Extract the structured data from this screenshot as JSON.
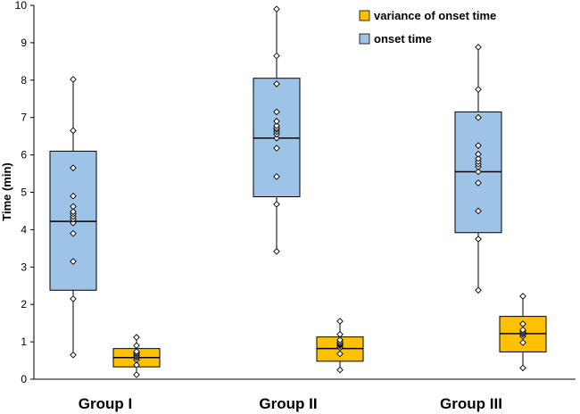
{
  "chart_data": {
    "type": "boxplot",
    "ylabel": "Time (min)",
    "ylim": [
      0,
      10
    ],
    "yticks": [
      "0",
      "1",
      "2",
      "3",
      "4",
      "5",
      "6",
      "7",
      "8",
      "9",
      "10"
    ],
    "categories": [
      "Group I",
      "Group II",
      "Group III"
    ],
    "legend_position": "top-right",
    "series": [
      {
        "name": "onset time",
        "color": "#9DC3E6",
        "boxes": [
          {
            "whisker_min": 0.65,
            "q1": 2.38,
            "median": 4.22,
            "q3": 6.1,
            "whisker_max": 8.02,
            "points": [
              0.65,
              2.15,
              3.15,
              3.9,
              4.18,
              4.28,
              4.35,
              4.42,
              4.48,
              4.62,
              4.9,
              5.65,
              6.65,
              8.02
            ]
          },
          {
            "whisker_min": 3.42,
            "q1": 4.88,
            "median": 6.45,
            "q3": 8.05,
            "whisker_max": 9.9,
            "points": [
              3.42,
              4.68,
              5.42,
              6.18,
              6.45,
              6.55,
              6.62,
              6.68,
              6.72,
              6.78,
              6.9,
              7.15,
              7.9,
              8.65,
              9.9
            ]
          },
          {
            "whisker_min": 2.38,
            "q1": 3.92,
            "median": 5.55,
            "q3": 7.15,
            "whisker_max": 8.88,
            "points": [
              2.38,
              3.75,
              4.5,
              5.25,
              5.55,
              5.68,
              5.75,
              5.82,
              5.9,
              6.02,
              6.25,
              7.0,
              7.75,
              8.88
            ]
          }
        ]
      },
      {
        "name": "variance of onset time",
        "color": "#FFC000",
        "boxes": [
          {
            "whisker_min": 0.12,
            "q1": 0.33,
            "median": 0.58,
            "q3": 0.82,
            "whisker_max": 1.12,
            "points": [
              0.12,
              0.38,
              0.52,
              0.58,
              0.62,
              0.66,
              0.7,
              0.74,
              0.9,
              1.12
            ]
          },
          {
            "whisker_min": 0.25,
            "q1": 0.48,
            "median": 0.82,
            "q3": 1.13,
            "whisker_max": 1.55,
            "points": [
              0.25,
              0.68,
              0.85,
              0.9,
              0.93,
              0.96,
              1.0,
              1.05,
              1.2,
              1.55
            ]
          },
          {
            "whisker_min": 0.3,
            "q1": 0.73,
            "median": 1.22,
            "q3": 1.68,
            "whisker_max": 2.22,
            "points": [
              0.3,
              0.98,
              1.15,
              1.2,
              1.24,
              1.28,
              1.32,
              1.48,
              2.22
            ]
          }
        ]
      }
    ]
  }
}
